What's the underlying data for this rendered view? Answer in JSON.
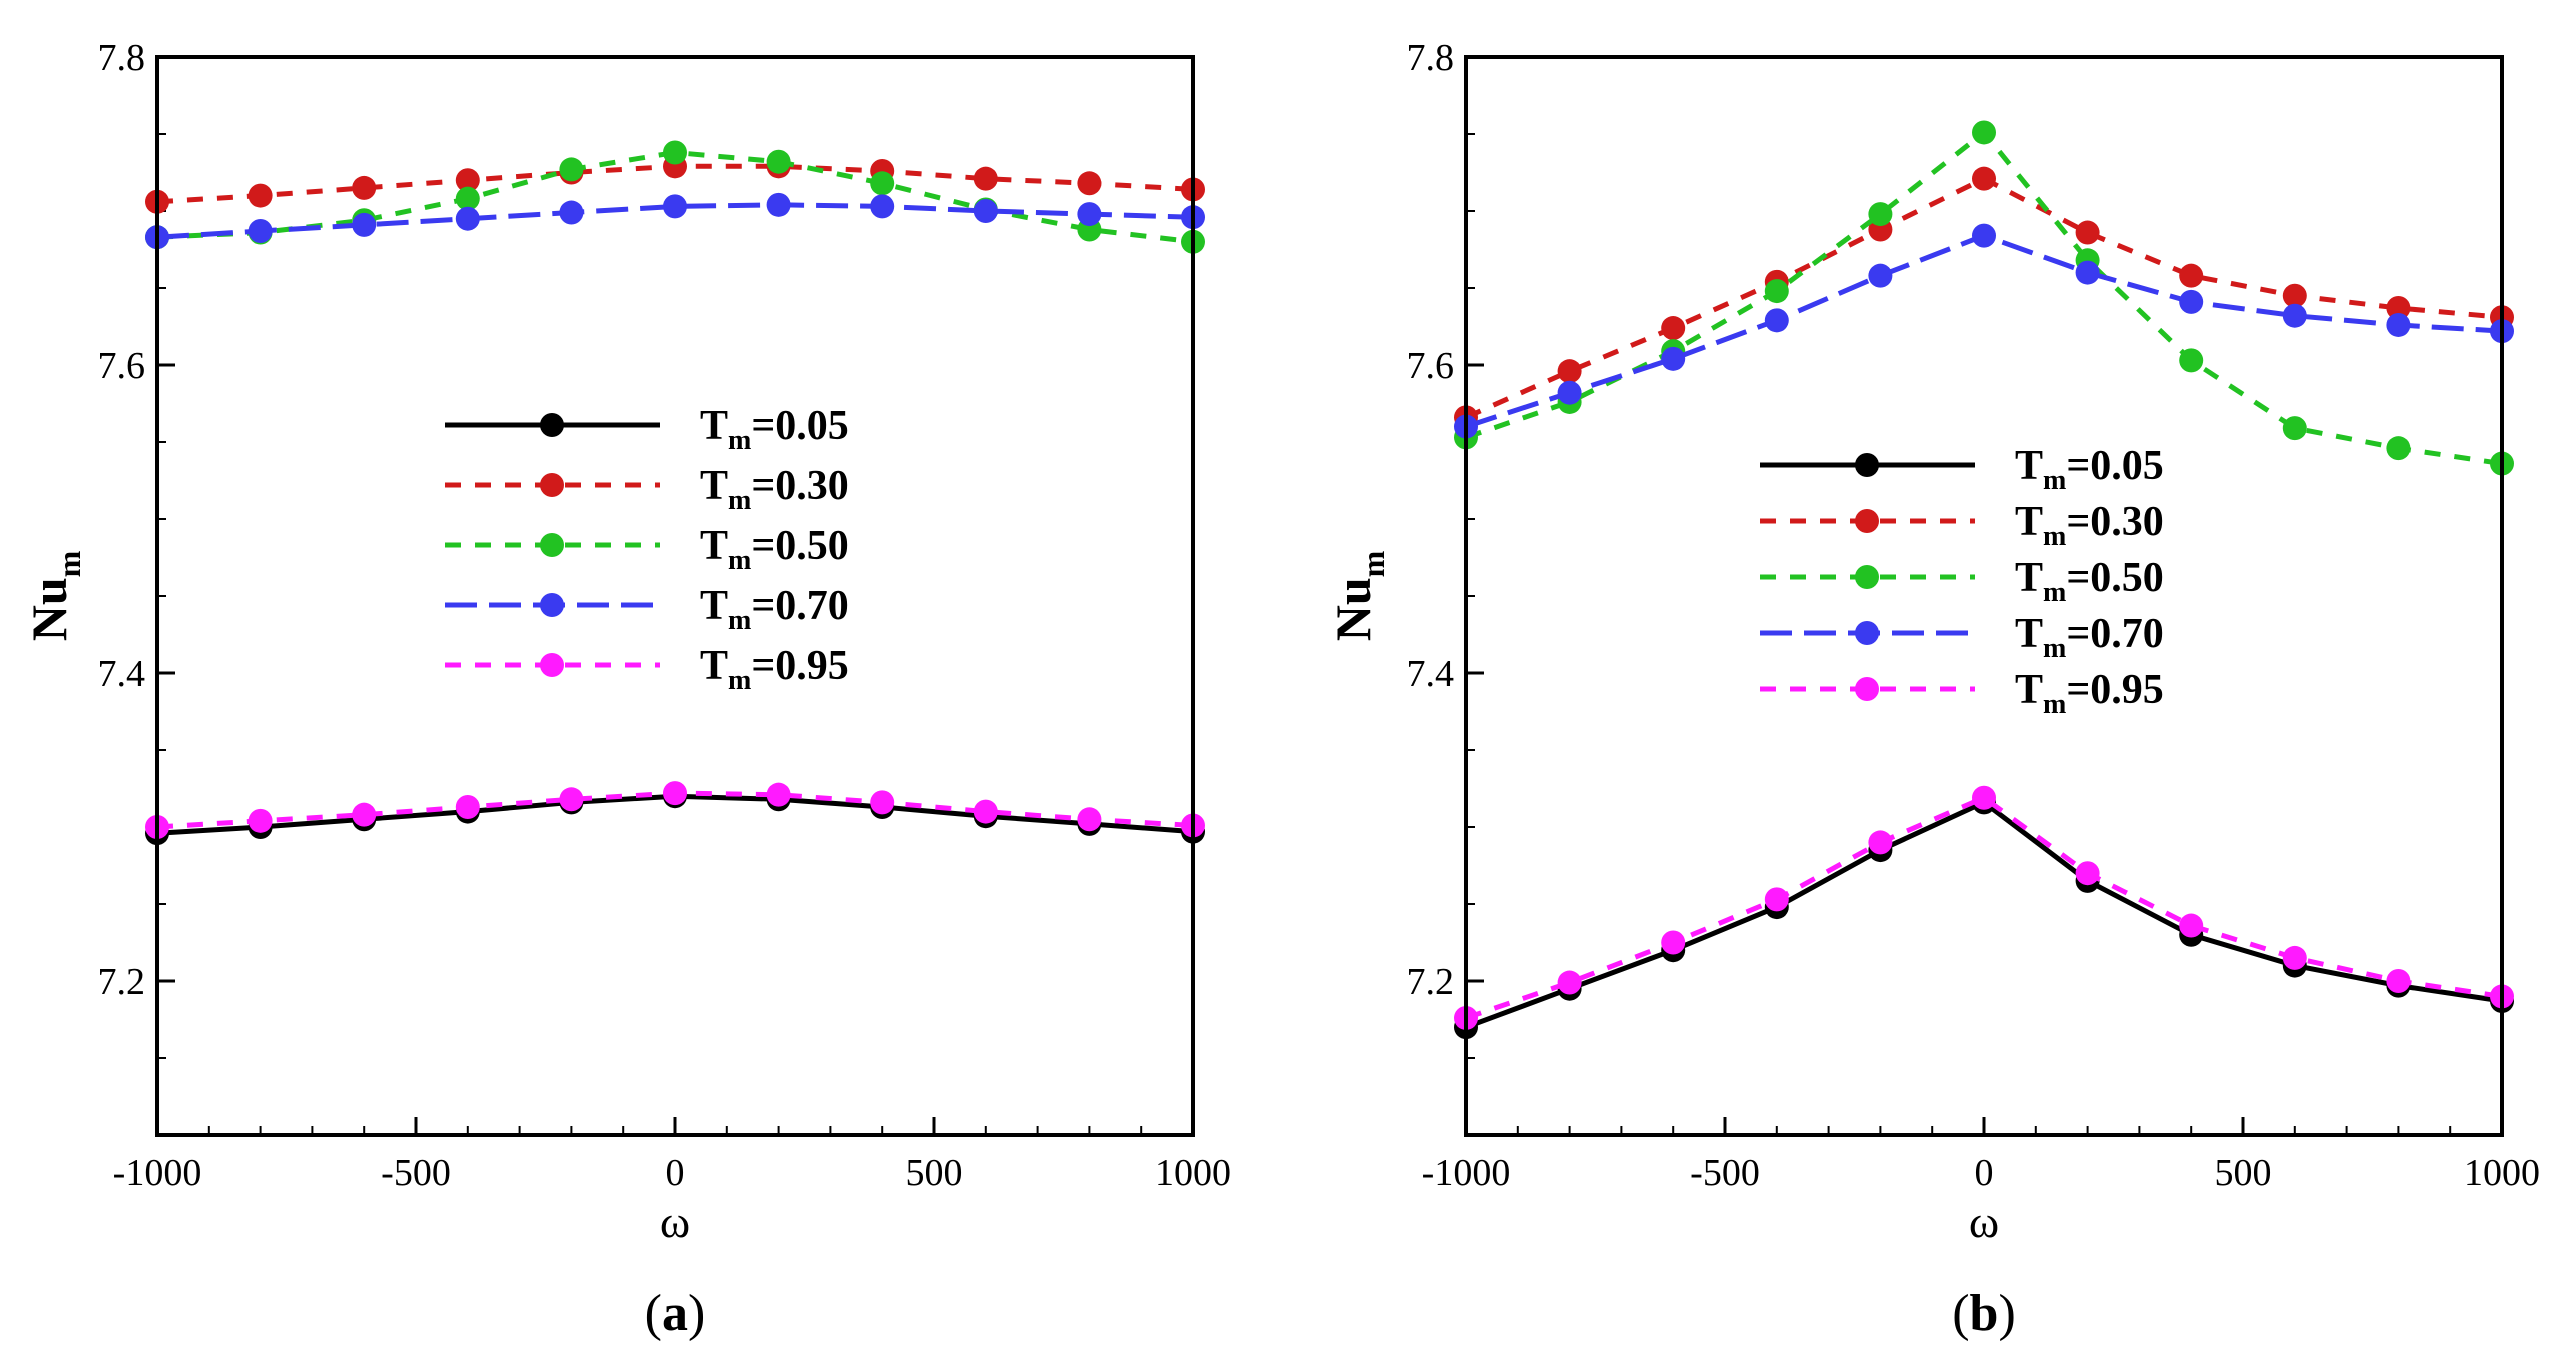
{
  "chart_data": [
    {
      "type": "line",
      "panel_label": "a",
      "xlabel": "ω",
      "ylabel": {
        "base": "Nu",
        "sub": "m"
      },
      "xlim": [
        -1000,
        1000
      ],
      "ylim": [
        7.1,
        7.8
      ],
      "xticks": [
        -1000,
        -500,
        0,
        500,
        1000
      ],
      "xtick_labels": [
        "-1000",
        "-500",
        "0",
        "500",
        "1000"
      ],
      "yticks": [
        7.2,
        7.4,
        7.6,
        7.8
      ],
      "ytick_labels": [
        "7.2",
        "7.4",
        "7.6",
        "7.8"
      ],
      "legend_position": "center",
      "x": [
        -1000,
        -800,
        -600,
        -400,
        -200,
        0,
        200,
        400,
        600,
        800,
        1000
      ],
      "series": [
        {
          "name": "T=0.05",
          "label_base": "T",
          "label_sub": "m",
          "label_value": "=0.05",
          "color": "#000000",
          "dash": "solid",
          "values": [
            7.296,
            7.3,
            7.305,
            7.31,
            7.316,
            7.32,
            7.318,
            7.313,
            7.307,
            7.302,
            7.297
          ]
        },
        {
          "name": "T=0.30",
          "label_base": "T",
          "label_sub": "m",
          "label_value": "=0.30",
          "color": "#d11a1a",
          "dash": "short",
          "values": [
            7.706,
            7.71,
            7.715,
            7.72,
            7.725,
            7.729,
            7.729,
            7.726,
            7.721,
            7.718,
            7.714
          ]
        },
        {
          "name": "T=0.50",
          "label_base": "T",
          "label_sub": "m",
          "label_value": "=0.50",
          "color": "#22c222",
          "dash": "short",
          "values": [
            7.683,
            7.686,
            7.694,
            7.708,
            7.727,
            7.738,
            7.732,
            7.718,
            7.701,
            7.688,
            7.68
          ]
        },
        {
          "name": "T=0.70",
          "label_base": "T",
          "label_sub": "m",
          "label_value": "=0.70",
          "color": "#3a3af0",
          "dash": "long",
          "values": [
            7.683,
            7.687,
            7.691,
            7.695,
            7.699,
            7.703,
            7.704,
            7.703,
            7.7,
            7.698,
            7.696
          ]
        },
        {
          "name": "T=0.95",
          "label_base": "T",
          "label_sub": "m",
          "label_value": "=0.95",
          "color": "#ff1aff",
          "dash": "short",
          "values": [
            7.3,
            7.304,
            7.308,
            7.313,
            7.318,
            7.322,
            7.321,
            7.316,
            7.31,
            7.305,
            7.301
          ]
        }
      ]
    },
    {
      "type": "line",
      "panel_label": "b",
      "xlabel": "ω",
      "ylabel": {
        "base": "Nu",
        "sub": "m"
      },
      "xlim": [
        -1000,
        1000
      ],
      "ylim": [
        7.1,
        7.8
      ],
      "xticks": [
        -1000,
        -500,
        0,
        500,
        1000
      ],
      "xtick_labels": [
        "-1000",
        "-500",
        "0",
        "500",
        "1000"
      ],
      "yticks": [
        7.2,
        7.4,
        7.6,
        7.8
      ],
      "ytick_labels": [
        "7.2",
        "7.4",
        "7.6",
        "7.8"
      ],
      "legend_position": "center",
      "x": [
        -1000,
        -800,
        -600,
        -400,
        -200,
        0,
        200,
        400,
        600,
        800,
        1000
      ],
      "series": [
        {
          "name": "T=0.05",
          "label_base": "T",
          "label_sub": "m",
          "label_value": "=0.05",
          "color": "#000000",
          "dash": "solid",
          "values": [
            7.17,
            7.195,
            7.22,
            7.248,
            7.285,
            7.316,
            7.265,
            7.23,
            7.21,
            7.197,
            7.187
          ]
        },
        {
          "name": "T=0.30",
          "label_base": "T",
          "label_sub": "m",
          "label_value": "=0.30",
          "color": "#d11a1a",
          "dash": "short",
          "values": [
            7.566,
            7.596,
            7.624,
            7.654,
            7.688,
            7.721,
            7.686,
            7.658,
            7.645,
            7.637,
            7.631
          ]
        },
        {
          "name": "T=0.50",
          "label_base": "T",
          "label_sub": "m",
          "label_value": "=0.50",
          "color": "#22c222",
          "dash": "short",
          "values": [
            7.553,
            7.576,
            7.609,
            7.648,
            7.698,
            7.751,
            7.668,
            7.603,
            7.559,
            7.546,
            7.536
          ]
        },
        {
          "name": "T=0.70",
          "label_base": "T",
          "label_sub": "m",
          "label_value": "=0.70",
          "color": "#3a3af0",
          "dash": "long",
          "values": [
            7.56,
            7.582,
            7.604,
            7.629,
            7.658,
            7.684,
            7.66,
            7.641,
            7.632,
            7.626,
            7.622
          ]
        },
        {
          "name": "T=0.95",
          "label_base": "T",
          "label_sub": "m",
          "label_value": "=0.95",
          "color": "#ff1aff",
          "dash": "short",
          "values": [
            7.176,
            7.199,
            7.225,
            7.253,
            7.29,
            7.319,
            7.27,
            7.236,
            7.215,
            7.2,
            7.19
          ]
        }
      ]
    }
  ]
}
